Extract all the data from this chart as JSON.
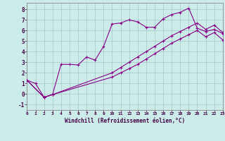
{
  "xlabel": "Windchill (Refroidissement éolien,°C)",
  "bg_color": "#ccecea",
  "grid_color": "#aaccca",
  "line_color": "#880088",
  "xlim": [
    0,
    23
  ],
  "ylim": [
    -1.5,
    8.6
  ],
  "xticks": [
    0,
    1,
    2,
    3,
    4,
    5,
    6,
    7,
    8,
    9,
    10,
    11,
    12,
    13,
    14,
    15,
    16,
    17,
    18,
    19,
    20,
    21,
    22,
    23
  ],
  "yticks": [
    -1,
    0,
    1,
    2,
    3,
    4,
    5,
    6,
    7,
    8
  ],
  "line1_x": [
    0,
    1,
    2,
    3,
    4,
    5,
    6,
    7,
    8,
    9,
    10,
    11,
    12,
    13,
    14,
    15,
    16,
    17,
    18,
    19,
    20,
    21,
    22,
    23
  ],
  "line1_y": [
    1.3,
    1.0,
    -0.3,
    -0.05,
    2.8,
    2.8,
    2.75,
    3.5,
    3.2,
    4.5,
    6.6,
    6.7,
    7.0,
    6.8,
    6.3,
    6.3,
    7.1,
    7.5,
    7.7,
    8.1,
    6.2,
    5.9,
    6.1,
    5.7
  ],
  "line2_x": [
    0,
    2,
    3,
    10,
    11,
    12,
    13,
    14,
    15,
    16,
    17,
    18,
    19,
    20,
    21,
    22,
    23
  ],
  "line2_y": [
    1.3,
    -0.3,
    -0.05,
    2.0,
    2.5,
    3.0,
    3.5,
    4.0,
    4.5,
    5.0,
    5.5,
    5.9,
    6.3,
    6.7,
    6.1,
    6.5,
    5.8
  ],
  "line3_x": [
    0,
    2,
    3,
    10,
    11,
    12,
    13,
    14,
    15,
    16,
    17,
    18,
    19,
    20,
    21,
    22,
    23
  ],
  "line3_y": [
    1.3,
    -0.3,
    -0.05,
    1.6,
    2.0,
    2.4,
    2.8,
    3.3,
    3.8,
    4.3,
    4.8,
    5.2,
    5.6,
    6.0,
    5.4,
    5.8,
    5.1
  ]
}
